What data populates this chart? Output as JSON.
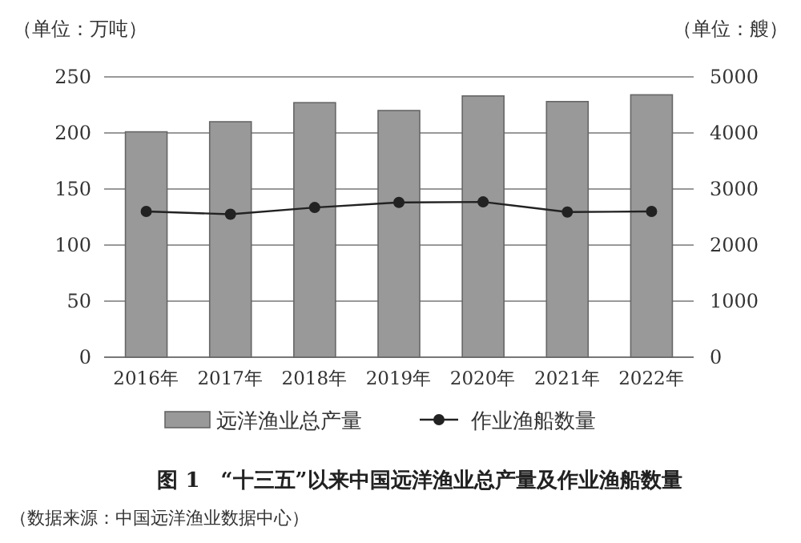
{
  "chart_data": {
    "type": "bar",
    "title": "图 1　“十三五”以来中国远洋渔业总产量及作业渔船数量",
    "ylabel": "（单位：万吨）",
    "y2label": "（单位：艘）",
    "categories": [
      "2016年",
      "2017年",
      "2018年",
      "2019年",
      "2020年",
      "2021年",
      "2022年"
    ],
    "series": [
      {
        "name": "远洋渔业总产量",
        "color": "#999999",
        "values": [
          201,
          210,
          227,
          220,
          233,
          228,
          234
        ]
      },
      {
        "name": "作业渔船数量",
        "type": "line",
        "axis": "y2",
        "color": "#222222",
        "values": [
          2600,
          2550,
          2670,
          2760,
          2770,
          2590,
          2600
        ]
      }
    ],
    "ylim": [
      0,
      250
    ],
    "yticks": [
      0,
      50,
      100,
      150,
      200,
      250
    ],
    "y2lim": [
      0,
      5000
    ],
    "y2ticks": [
      0,
      1000,
      2000,
      3000,
      4000,
      5000
    ],
    "grid": "y",
    "legend": "bottom",
    "marker": "circle",
    "line_style": "solid",
    "annotations": [
      "（数据来源：中国远洋渔业数据中心）"
    ]
  }
}
